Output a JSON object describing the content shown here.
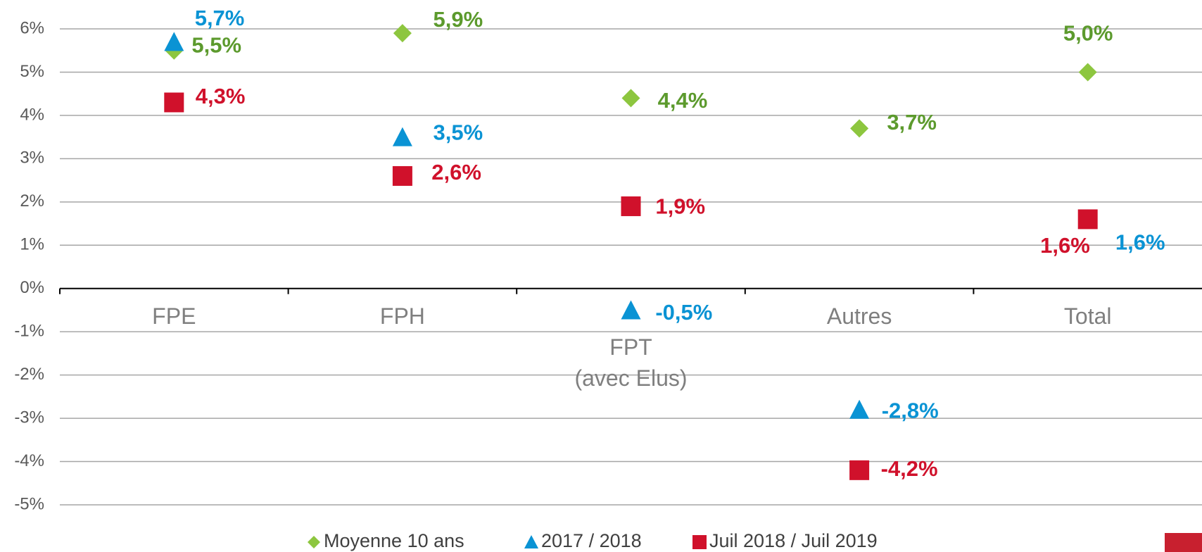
{
  "chart_data": {
    "type": "scatter",
    "categories": [
      "FPE",
      "FPH",
      "FPT\n(avec Elus)",
      "Autres",
      "Total"
    ],
    "series": [
      {
        "name": "Moyenne 10 ans",
        "color": "#8dc63f",
        "label_color": "#5c9a2d",
        "marker": "diamond",
        "values": [
          5.5,
          5.9,
          4.4,
          3.7,
          5.0
        ],
        "value_labels": [
          "5,5%",
          "5,9%",
          "4,4%",
          "3,7%",
          "5,0%"
        ]
      },
      {
        "name": "2017 / 2018",
        "color": "#0a93d4",
        "label_color": "#0a93d4",
        "marker": "triangle",
        "values": [
          5.7,
          3.5,
          -0.5,
          -2.8,
          1.6
        ],
        "value_labels": [
          "5,7%",
          "3,5%",
          "-0,5%",
          "-2,8%",
          "1,6%"
        ]
      },
      {
        "name": "Juil 2018 / Juil 2019",
        "color": "#d0112b",
        "label_color": "#d0112b",
        "marker": "square",
        "values": [
          4.3,
          2.6,
          1.9,
          -4.2,
          1.6
        ],
        "value_labels": [
          "4,3%",
          "2,6%",
          "1,9%",
          "-4,2%",
          "1,6%"
        ]
      }
    ],
    "ylim": [
      -5,
      6
    ],
    "yticks": [
      {
        "value": -5,
        "label": "-5%"
      },
      {
        "value": -4,
        "label": "-4%"
      },
      {
        "value": -3,
        "label": "-3%"
      },
      {
        "value": -2,
        "label": "-2%"
      },
      {
        "value": -1,
        "label": "-1%"
      },
      {
        "value": 0,
        "label": "0%"
      },
      {
        "value": 1,
        "label": "1%"
      },
      {
        "value": 2,
        "label": "2%"
      },
      {
        "value": 3,
        "label": "3%"
      },
      {
        "value": 4,
        "label": "4%"
      },
      {
        "value": 5,
        "label": "5%"
      },
      {
        "value": 6,
        "label": "6%"
      }
    ],
    "grid": true,
    "legend": "bottom"
  }
}
